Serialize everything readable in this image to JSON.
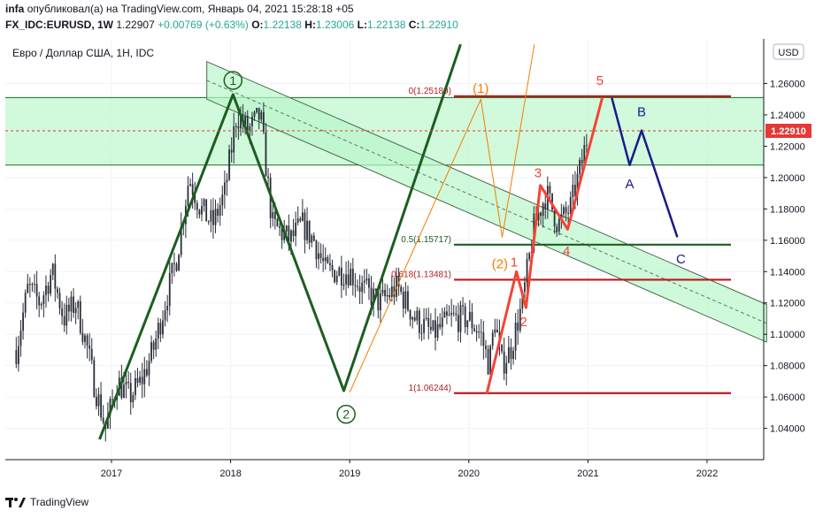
{
  "header": {
    "line1": {
      "user": "infa",
      "published": "опубликовал(а) на TradingView.com, Январь 04, 2021 15:28:18 +05"
    },
    "line2": {
      "symbol": "FX_IDC:EURUSD, 1W",
      "last": "1.22907",
      "change": "+0.00769 (+0.63%)",
      "o_label": "O:",
      "o": "1.22138",
      "h_label": "H:",
      "h": "1.23006",
      "l_label": "L:",
      "l": "1.22138",
      "c_label": "C:",
      "c": "1.22910"
    }
  },
  "plot_title": "Евро / Доллар США, 1Н, IDC",
  "currency_button": "USD",
  "last_price_tag": "1.22910",
  "footer_brand": "TradingView",
  "colors": {
    "green_line": "#1b5e20",
    "red_line": "#b71c1c",
    "orange": "#f57c00",
    "wave_red": "#f44336",
    "navy": "#1a1a8c",
    "zone_fill": "#b9f6ca",
    "price_tag": "#e53935",
    "candles": "#2a2e39"
  },
  "chart_data": {
    "type": "line",
    "xlabel": "",
    "ylabel": "",
    "xlim": [
      2016.2,
      2022.5
    ],
    "ylim": [
      1.02,
      1.285
    ],
    "x_ticks": [
      "2017",
      "2018",
      "2019",
      "2020",
      "2021",
      "2022"
    ],
    "x_tick_values": [
      2017,
      2018,
      2019,
      2020,
      2021,
      2022
    ],
    "y_ticks": [
      "1.04000",
      "1.06000",
      "1.08000",
      "1.10000",
      "1.12000",
      "1.14000",
      "1.16000",
      "1.18000",
      "1.20000",
      "1.22000",
      "1.24000",
      "1.26000"
    ],
    "y_tick_values": [
      1.04,
      1.06,
      1.08,
      1.1,
      1.12,
      1.14,
      1.16,
      1.18,
      1.2,
      1.22,
      1.24,
      1.26
    ],
    "last_price": 1.2291,
    "price_path": [
      [
        2016.2,
        1.09
      ],
      [
        2016.3,
        1.13
      ],
      [
        2016.4,
        1.12
      ],
      [
        2016.5,
        1.14
      ],
      [
        2016.6,
        1.11
      ],
      [
        2016.7,
        1.12
      ],
      [
        2016.8,
        1.09
      ],
      [
        2016.85,
        1.07
      ],
      [
        2016.95,
        1.04
      ],
      [
        2017.05,
        1.07
      ],
      [
        2017.15,
        1.06
      ],
      [
        2017.25,
        1.07
      ],
      [
        2017.35,
        1.09
      ],
      [
        2017.45,
        1.12
      ],
      [
        2017.55,
        1.15
      ],
      [
        2017.65,
        1.2
      ],
      [
        2017.75,
        1.18
      ],
      [
        2017.85,
        1.17
      ],
      [
        2017.95,
        1.19
      ],
      [
        2018.05,
        1.24
      ],
      [
        2018.15,
        1.23
      ],
      [
        2018.25,
        1.24
      ],
      [
        2018.35,
        1.17
      ],
      [
        2018.5,
        1.16
      ],
      [
        2018.6,
        1.17
      ],
      [
        2018.7,
        1.16
      ],
      [
        2018.8,
        1.14
      ],
      [
        2018.9,
        1.14
      ],
      [
        2019.0,
        1.14
      ],
      [
        2019.1,
        1.13
      ],
      [
        2019.25,
        1.12
      ],
      [
        2019.4,
        1.13
      ],
      [
        2019.55,
        1.11
      ],
      [
        2019.7,
        1.1
      ],
      [
        2019.85,
        1.11
      ],
      [
        2020.0,
        1.11
      ],
      [
        2020.1,
        1.1
      ],
      [
        2020.17,
        1.08
      ],
      [
        2020.22,
        1.11
      ],
      [
        2020.27,
        1.08
      ],
      [
        2020.35,
        1.09
      ],
      [
        2020.45,
        1.12
      ],
      [
        2020.55,
        1.17
      ],
      [
        2020.65,
        1.19
      ],
      [
        2020.75,
        1.17
      ],
      [
        2020.85,
        1.18
      ],
      [
        2020.95,
        1.21
      ],
      [
        2021.0,
        1.229
      ]
    ],
    "horizontal_levels": [
      {
        "y": 1.25189,
        "color": "red",
        "label": "0(1.25189)"
      },
      {
        "y": 1.15717,
        "color": "green",
        "label": "0.5(1.15717)"
      },
      {
        "y": 1.13481,
        "color": "red",
        "label": "0.618(1.13481)"
      },
      {
        "y": 1.06244,
        "color": "red",
        "label": "1(1.06244)"
      }
    ],
    "zones": [
      {
        "name": "",
        "y_from": 1.208,
        "y_to": 1.251
      }
    ],
    "channel": {
      "x0": 2017.8,
      "y0": 1.262,
      "x1": 2022.5,
      "y1": 1.107,
      "width": 0.012
    },
    "series": [
      {
        "name": "",
        "style": "green-wave",
        "points": [
          [
            2016.9,
            1.033
          ],
          [
            2018.02,
            1.253
          ],
          [
            2018.95,
            1.064
          ],
          [
            2019.93,
            1.285
          ]
        ]
      },
      {
        "name": "",
        "style": "orange",
        "points": [
          [
            2019.0,
            1.063
          ],
          [
            2020.1,
            1.25
          ],
          [
            2020.28,
            1.162
          ],
          [
            2020.55,
            1.285
          ]
        ]
      },
      {
        "name": "",
        "style": "red-wave",
        "points": [
          [
            2020.15,
            1.062
          ],
          [
            2020.4,
            1.14
          ],
          [
            2020.48,
            1.117
          ],
          [
            2020.6,
            1.195
          ],
          [
            2020.83,
            1.167
          ],
          [
            2021.12,
            1.251
          ]
        ]
      },
      {
        "name": "",
        "style": "navy",
        "points": [
          [
            2021.2,
            1.251
          ],
          [
            2021.35,
            1.208
          ],
          [
            2021.45,
            1.23
          ],
          [
            2021.75,
            1.162
          ]
        ]
      }
    ],
    "annotations": [
      {
        "text": "1",
        "x": 2018.02,
        "y": 1.262,
        "style": "circled"
      },
      {
        "text": "2",
        "x": 2018.97,
        "y": 1.049,
        "style": "circled"
      },
      {
        "text": "(1)",
        "x": 2020.1,
        "y": 1.257,
        "style": "orange"
      },
      {
        "text": "(2)",
        "x": 2020.26,
        "y": 1.145,
        "style": "orange"
      },
      {
        "text": "1",
        "x": 2020.38,
        "y": 1.146,
        "style": "red"
      },
      {
        "text": "2",
        "x": 2020.46,
        "y": 1.108,
        "style": "red"
      },
      {
        "text": "3",
        "x": 2020.58,
        "y": 1.203,
        "style": "red"
      },
      {
        "text": "4",
        "x": 2020.82,
        "y": 1.153,
        "style": "red"
      },
      {
        "text": "5",
        "x": 2021.1,
        "y": 1.262,
        "style": "red"
      },
      {
        "text": "A",
        "x": 2021.35,
        "y": 1.196,
        "style": "navy"
      },
      {
        "text": "B",
        "x": 2021.45,
        "y": 1.242,
        "style": "navy"
      },
      {
        "text": "C",
        "x": 2021.78,
        "y": 1.148,
        "style": "navy"
      }
    ]
  }
}
